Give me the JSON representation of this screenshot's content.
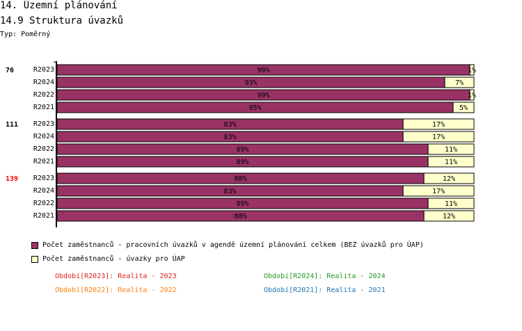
{
  "title": "14. Územní plánování",
  "subtitle": "14.9 Struktura úvazků",
  "type_label": "Typ: Poměrný",
  "colors": {
    "series1": "#993366",
    "series2": "#ffffcc",
    "highlight": "#ff0000"
  },
  "chart_data": {
    "type": "bar",
    "stacked": "100%",
    "orientation": "horizontal",
    "groups": [
      {
        "label": "76",
        "highlight": false,
        "categories": [
          "R2023",
          "R2024",
          "R2022",
          "R2021"
        ]
      },
      {
        "label": "111",
        "highlight": false,
        "categories": [
          "R2023",
          "R2024",
          "R2022",
          "R2021"
        ]
      },
      {
        "label": "139",
        "highlight": true,
        "categories": [
          "R2023",
          "R2024",
          "R2022",
          "R2021"
        ]
      }
    ],
    "series": [
      {
        "name": "Počet zaměstnanců - pracovních úvazků v agendě územní plánování celkem (BEZ úvazků pro ÚAP)",
        "values": [
          [
            99,
            93,
            99,
            95
          ],
          [
            83,
            83,
            89,
            89
          ],
          [
            88,
            83,
            89,
            88
          ]
        ]
      },
      {
        "name": "Počet zaměstnanců - úvazky pro ÚAP",
        "values": [
          [
            1,
            7,
            1,
            5
          ],
          [
            17,
            17,
            11,
            11
          ],
          [
            12,
            17,
            11,
            12
          ]
        ]
      }
    ],
    "xlim": [
      0,
      100
    ]
  },
  "periods": [
    {
      "text": "Období[R2023]: Realita - 2023",
      "color": "#dd2222"
    },
    {
      "text": "Období[R2024]: Realita - 2024",
      "color": "#229922"
    },
    {
      "text": "Období[R2022]: Realita - 2022",
      "color": "#ff7f0e"
    },
    {
      "text": "Období[R2021]: Realita - 2021",
      "color": "#1f77b4"
    }
  ]
}
